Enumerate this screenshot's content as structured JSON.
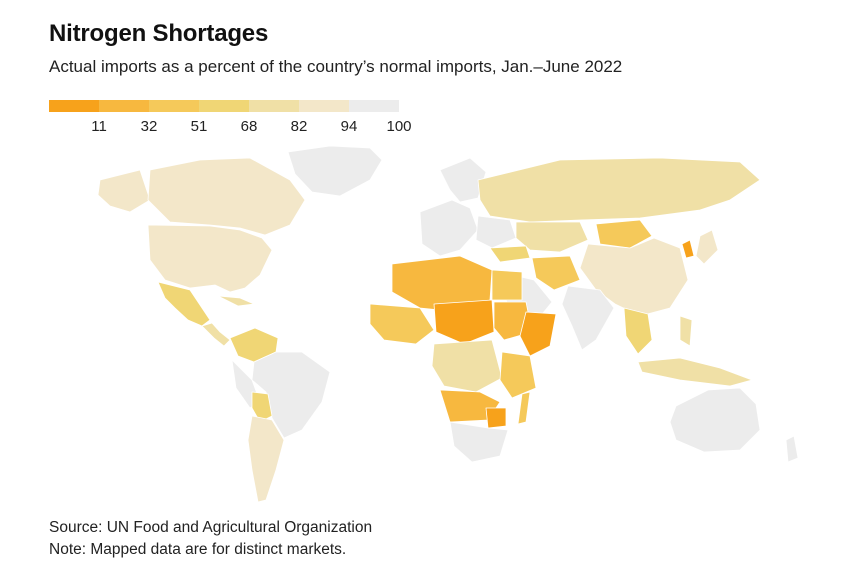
{
  "title": "Nitrogen Shortages",
  "subtitle": "Actual imports as a percent of the country’s normal imports, Jan.–June 2022",
  "legend": {
    "colors": [
      "#f7a21b",
      "#f7b83f",
      "#f5c95a",
      "#f0d675",
      "#f0e0a6",
      "#f3e7c9",
      "#ececec"
    ],
    "ticks": [
      "11",
      "32",
      "51",
      "68",
      "82",
      "94",
      "100"
    ]
  },
  "source": "Source: UN Food and Agricultural Organization",
  "note": "Note: Mapped data are for distinct markets."
}
